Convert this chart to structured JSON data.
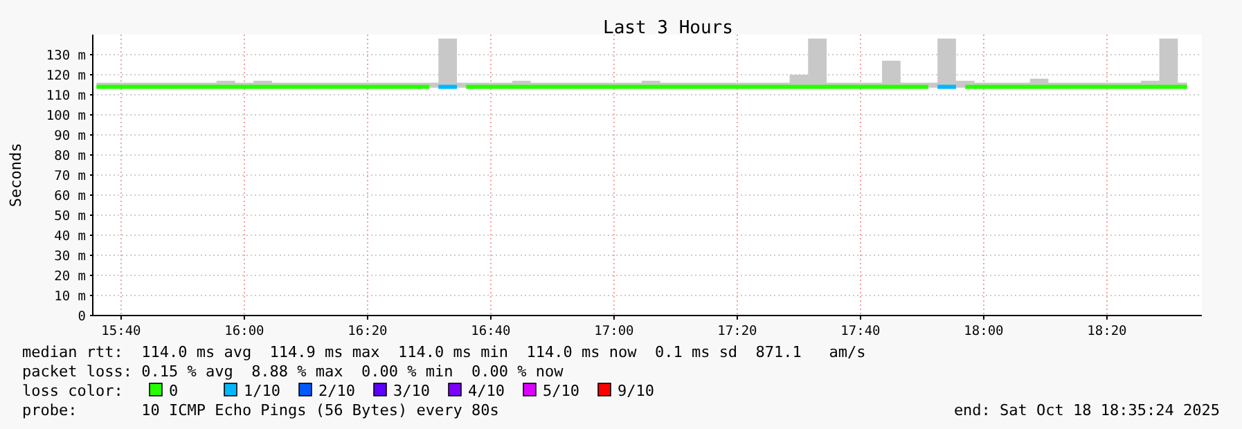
{
  "chart_data": {
    "type": "step",
    "title": "Last 3 Hours",
    "ylabel": "Seconds",
    "legend_title": "loss color:",
    "legend": "bottom",
    "grid": true,
    "annotations": [
      "median rtt:  114.0 ms avg  114.9 ms max  114.0 ms min  114.0 ms now  0.1 ms sd  871.1   am/s",
      "packet loss: 0.15 % avg  8.88 % max  0.00 % min  0.00 % now",
      "probe:       10 ICMP Echo Pings (56 Bytes) every 80s",
      "end: Sat Oct 18 18:35:24 2025"
    ],
    "xlim": [
      15.59,
      18.59
    ],
    "xticks": [
      {
        "value": 15.6667,
        "label": "15:40"
      },
      {
        "value": 16,
        "label": "16:00"
      },
      {
        "value": 16.3333,
        "label": "16:20"
      },
      {
        "value": 16.6667,
        "label": "16:40"
      },
      {
        "value": 17,
        "label": "17:00"
      },
      {
        "value": 17.3333,
        "label": "17:20"
      },
      {
        "value": 17.6667,
        "label": "17:40"
      },
      {
        "value": 18,
        "label": "18:00"
      },
      {
        "value": 18.3333,
        "label": "18:20"
      }
    ],
    "ylim": [
      0,
      140
    ],
    "yticks": [
      0,
      {
        "value": 10,
        "label": "10 m"
      },
      {
        "value": 20,
        "label": "20 m"
      },
      {
        "value": 30,
        "label": "30 m"
      },
      {
        "value": 40,
        "label": "40 m"
      },
      {
        "value": 50,
        "label": "50 m"
      },
      {
        "value": 60,
        "label": "60 m"
      },
      {
        "value": 70,
        "label": "70 m"
      },
      {
        "value": 80,
        "label": "80 m"
      },
      {
        "value": 90,
        "label": "90 m"
      },
      {
        "value": 100,
        "label": "100 m"
      },
      {
        "value": 110,
        "label": "110 m"
      },
      {
        "value": 120,
        "label": "120 m"
      },
      {
        "value": 130,
        "label": "130 m"
      }
    ],
    "x": [
      15.6,
      15.65,
      15.7,
      15.75,
      15.8,
      15.85,
      15.9,
      15.95,
      16,
      16.05,
      16.1,
      16.15,
      16.2,
      16.25,
      16.3,
      16.35,
      16.4,
      16.45,
      16.5,
      16.55,
      16.6,
      16.65,
      16.7,
      16.75,
      16.8,
      16.85,
      16.9,
      16.95,
      17,
      17.05,
      17.1,
      17.15,
      17.2,
      17.25,
      17.3,
      17.35,
      17.4,
      17.45,
      17.5,
      17.55,
      17.6,
      17.65,
      17.7,
      17.75,
      17.8,
      17.85,
      17.9,
      17.95,
      18,
      18.05,
      18.1,
      18.15,
      18.2,
      18.25,
      18.3,
      18.35,
      18.4,
      18.45,
      18.5,
      18.55
    ],
    "series": [
      {
        "name": "0",
        "color": "#26ff00",
        "values": [
          114,
          114,
          114,
          114,
          114,
          114,
          114,
          114,
          114,
          114,
          114,
          114,
          114,
          114,
          114,
          114,
          114,
          114,
          114,
          null,
          114,
          114,
          114,
          114,
          114,
          114,
          114,
          114,
          114,
          114,
          114,
          114,
          114,
          114,
          114,
          114,
          114,
          114,
          114,
          114,
          114,
          114,
          114,
          114,
          114,
          114,
          null,
          114,
          114,
          114,
          114,
          114,
          114,
          114,
          114,
          114,
          114,
          114,
          114,
          114
        ],
        "lower": [
          113.5,
          113.5,
          113.5,
          113.5,
          113.5,
          113.5,
          113.5,
          113.5,
          113.5,
          113.5,
          113.5,
          113.5,
          113.5,
          113.5,
          113.5,
          113.5,
          113.5,
          113.5,
          113.5,
          113.5,
          113.5,
          113.5,
          113.5,
          113.5,
          113.5,
          113.5,
          113.5,
          113.5,
          113.5,
          113.5,
          113.5,
          113.5,
          113.5,
          113.5,
          113.5,
          113.5,
          113.5,
          113.5,
          113.5,
          113.5,
          113.5,
          113.5,
          113.5,
          113.5,
          113.5,
          113.5,
          113.5,
          113.5,
          113.5,
          113.5,
          113.5,
          113.5,
          113.5,
          113.5,
          113.5,
          113.5,
          113.5,
          113.5,
          113.5,
          113.5
        ],
        "upper": [
          116,
          116,
          116,
          116,
          116,
          116,
          116,
          117,
          116,
          117,
          116,
          116,
          116,
          116,
          116,
          116,
          116,
          116,
          116,
          138,
          116,
          116,
          116,
          117,
          116,
          116,
          116,
          116,
          116,
          116,
          117,
          116,
          116,
          116,
          116,
          116,
          116,
          116,
          120,
          138,
          116,
          116,
          116,
          127,
          116,
          116,
          138,
          117,
          116,
          116,
          116,
          118,
          116,
          116,
          116,
          116,
          116,
          117,
          138,
          116
        ]
      },
      {
        "name": "1/10",
        "color": "#00b8ff",
        "x": [
          16.525,
          16.575,
          17.2,
          17.875,
          17.925
        ],
        "values": [
          114,
          114,
          null,
          114,
          114
        ]
      },
      {
        "name": "2/10",
        "color": "#0059ff",
        "values": [
          null,
          null,
          null,
          null,
          null,
          null,
          null,
          null,
          null,
          null,
          null,
          null,
          null,
          null,
          null,
          null,
          null,
          null,
          null,
          null,
          null,
          null,
          null,
          null,
          null,
          null,
          null,
          null,
          null,
          null,
          null,
          null,
          null,
          null,
          null,
          null,
          null,
          null,
          null,
          null,
          null,
          null,
          null,
          null,
          null,
          null,
          null,
          null,
          null,
          null,
          null,
          null,
          null,
          null,
          null,
          null,
          null,
          null,
          null,
          null
        ]
      },
      {
        "name": "3/10",
        "color": "#5e00ff",
        "values": [
          null,
          null,
          null,
          null,
          null,
          null,
          null,
          null,
          null,
          null,
          null,
          null,
          null,
          null,
          null,
          null,
          null,
          null,
          null,
          null,
          null,
          null,
          null,
          null,
          null,
          null,
          null,
          null,
          null,
          null,
          null,
          null,
          null,
          null,
          null,
          null,
          null,
          null,
          null,
          null,
          null,
          null,
          null,
          null,
          null,
          null,
          null,
          null,
          null,
          null,
          null,
          null,
          null,
          null,
          null,
          null,
          null,
          null,
          null,
          null
        ]
      },
      {
        "name": "4/10",
        "color": "#7e00ff",
        "values": [
          null,
          null,
          null,
          null,
          null,
          null,
          null,
          null,
          null,
          null,
          null,
          null,
          null,
          null,
          null,
          null,
          null,
          null,
          null,
          null,
          null,
          null,
          null,
          null,
          null,
          null,
          null,
          null,
          null,
          null,
          null,
          null,
          null,
          null,
          null,
          null,
          null,
          null,
          null,
          null,
          null,
          null,
          null,
          null,
          null,
          null,
          null,
          null,
          null,
          null,
          null,
          null,
          null,
          null,
          null,
          null,
          null,
          null,
          null,
          null
        ]
      },
      {
        "name": "5/10",
        "color": "#dd00ff",
        "values": [
          null,
          null,
          null,
          null,
          null,
          null,
          null,
          null,
          null,
          null,
          null,
          null,
          null,
          null,
          null,
          null,
          null,
          null,
          null,
          null,
          null,
          null,
          null,
          null,
          null,
          null,
          null,
          null,
          null,
          null,
          null,
          null,
          null,
          null,
          null,
          null,
          null,
          null,
          null,
          null,
          null,
          null,
          null,
          null,
          null,
          null,
          null,
          null,
          null,
          null,
          null,
          null,
          null,
          null,
          null,
          null,
          null,
          null,
          null,
          null
        ]
      },
      {
        "name": "9/10",
        "color": "#ff0000",
        "values": [
          null,
          null,
          null,
          null,
          null,
          null,
          null,
          null,
          null,
          null,
          null,
          null,
          null,
          null,
          null,
          null,
          null,
          null,
          null,
          null,
          null,
          null,
          null,
          null,
          null,
          null,
          null,
          null,
          null,
          null,
          null,
          null,
          null,
          null,
          null,
          null,
          null,
          null,
          null,
          null,
          null,
          null,
          null,
          null,
          null,
          null,
          null,
          null,
          null,
          null,
          null,
          null,
          null,
          null,
          null,
          null,
          null,
          null,
          null,
          null
        ]
      }
    ]
  }
}
